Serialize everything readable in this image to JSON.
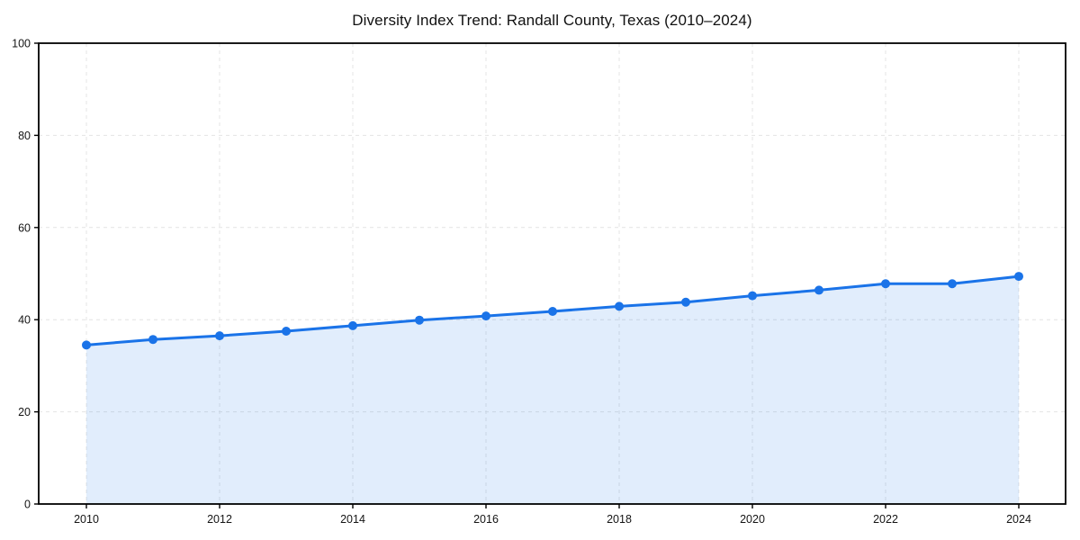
{
  "page": {
    "background_color": "#ffffff"
  },
  "chart_data": {
    "type": "line",
    "title": "Diversity Index Trend: Randall County, Texas (2010–2024)",
    "xlabel": "",
    "ylabel": "",
    "x": [
      2010,
      2011,
      2012,
      2013,
      2014,
      2015,
      2016,
      2017,
      2018,
      2019,
      2020,
      2021,
      2022,
      2023,
      2024
    ],
    "series": [
      {
        "name": "Diversity Index",
        "values": [
          34.5,
          35.7,
          36.5,
          37.5,
          38.7,
          39.9,
          40.8,
          41.8,
          42.9,
          43.8,
          45.2,
          46.4,
          47.8,
          47.8,
          49.4
        ]
      }
    ],
    "ylim": [
      0,
      100
    ],
    "xlim_years": [
      2010,
      2024
    ],
    "yticks": [
      0,
      20,
      40,
      60,
      80,
      100
    ],
    "xticks": [
      2010,
      2012,
      2014,
      2016,
      2018,
      2020,
      2022,
      2024
    ],
    "grid": true,
    "grid_style": "dashed",
    "grid_color": "#e4e4e4",
    "legend_position": "none",
    "line_color": "#1a73e8",
    "marker": "circle",
    "marker_radius": 5,
    "line_width": 3,
    "area_fill": true,
    "area_color": "#1a73e8",
    "area_opacity": 0.13,
    "frame_color": "#000000",
    "tick_color": "#000000"
  }
}
